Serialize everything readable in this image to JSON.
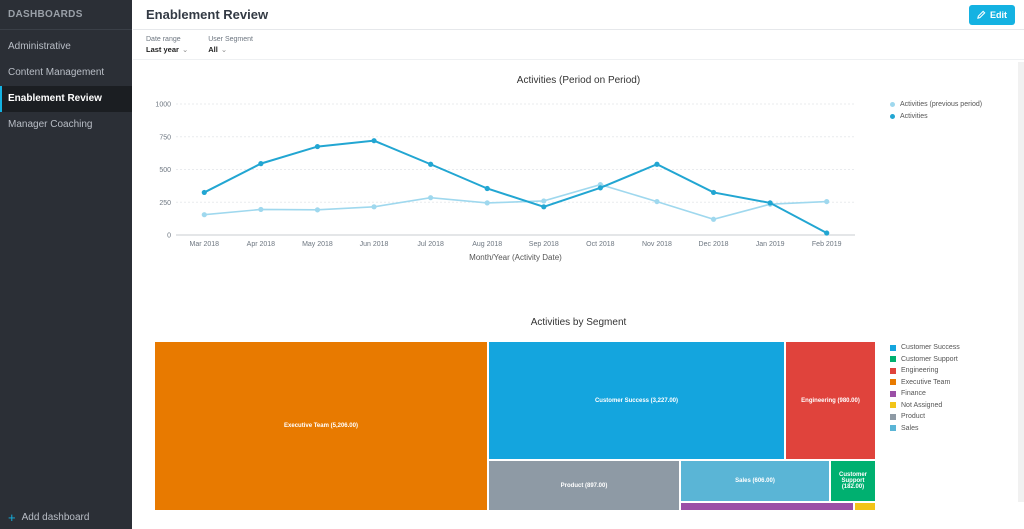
{
  "sidebar": {
    "header": "DASHBOARDS",
    "items": [
      {
        "label": "Administrative"
      },
      {
        "label": "Content Management"
      },
      {
        "label": "Enablement Review"
      },
      {
        "label": "Manager Coaching"
      }
    ],
    "add_label": "Add dashboard"
  },
  "header": {
    "title": "Enablement Review",
    "edit_label": "Edit"
  },
  "filters": [
    {
      "label": "Date range",
      "value": "Last year"
    },
    {
      "label": "User Segment",
      "value": "All"
    }
  ],
  "colors": {
    "accent": "#14b2e2",
    "activities": "#22a6d2",
    "previous": "#9fd8ee"
  },
  "chart_data": [
    {
      "type": "line",
      "title": "Activities (Period on Period)",
      "xlabel": "Month/Year (Activity Date)",
      "ylabel": "",
      "ylim": [
        0,
        1000
      ],
      "yticks": [
        "0",
        "250",
        "500",
        "750",
        "1000"
      ],
      "categories": [
        "Mar 2018",
        "Apr 2018",
        "May 2018",
        "Jun 2018",
        "Jul 2018",
        "Aug 2018",
        "Sep 2018",
        "Oct 2018",
        "Nov 2018",
        "Dec 2018",
        "Jan 2019",
        "Feb 2019"
      ],
      "series": [
        {
          "name": "Activities (previous period)",
          "color": "#9fd8ee",
          "values": [
            155,
            195,
            192,
            215,
            285,
            245,
            260,
            385,
            255,
            120,
            235,
            255
          ]
        },
        {
          "name": "Activities",
          "color": "#22a6d2",
          "values": [
            325,
            545,
            675,
            720,
            540,
            355,
            215,
            360,
            540,
            325,
            245,
            15
          ]
        }
      ],
      "legend": "right",
      "grid": true
    },
    {
      "type": "treemap",
      "title": "Activities by Segment",
      "items": [
        {
          "name": "Executive Team",
          "label": "Executive Team (5,206.00)",
          "value": 5206,
          "color": "#e87a00"
        },
        {
          "name": "Customer Success",
          "label": "Customer Success (3,227.00)",
          "value": 3227,
          "color": "#14a5de"
        },
        {
          "name": "Engineering",
          "label": "Engineering (980.00)",
          "value": 980,
          "color": "#e0433c"
        },
        {
          "name": "Product",
          "label": "Product (897.00)",
          "value": 897,
          "color": "#8e9aa5"
        },
        {
          "name": "Sales",
          "label": "Sales (606.00)",
          "value": 606,
          "color": "#5ab5d6"
        },
        {
          "name": "Customer Support",
          "label": "Customer Support (182.00)",
          "value": 182,
          "color": "#00b070"
        },
        {
          "name": "Finance",
          "label": "",
          "value": 0,
          "color": "#9b4fa6"
        },
        {
          "name": "Not Assigned",
          "label": "",
          "value": 0,
          "color": "#f2c418"
        }
      ],
      "legend": [
        "Customer Success",
        "Customer Support",
        "Engineering",
        "Executive Team",
        "Finance",
        "Not Assigned",
        "Product",
        "Sales"
      ]
    }
  ]
}
